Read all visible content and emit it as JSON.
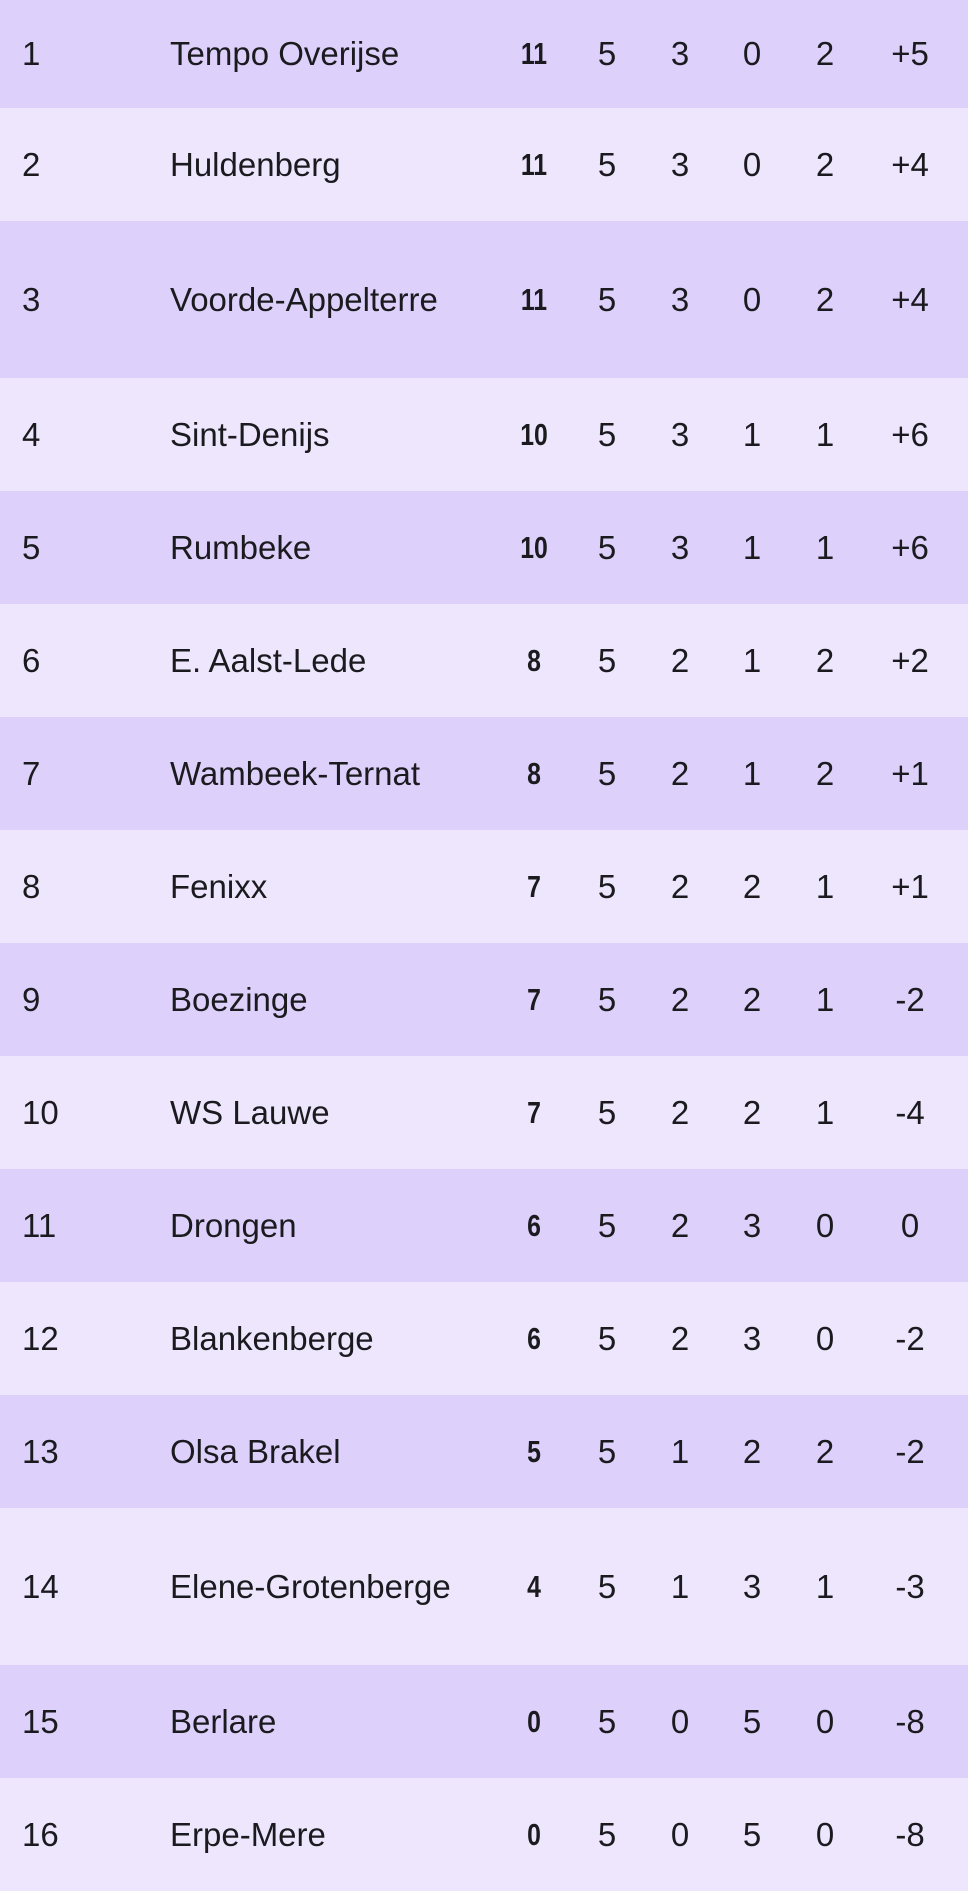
{
  "colors": {
    "row_dark": "#ddd0fb",
    "row_light": "#ede6fd",
    "text": "#1b1b1f"
  },
  "standings": [
    {
      "rank": "1",
      "team": "Tempo Overijse",
      "points": "11",
      "played": "5",
      "won": "3",
      "drawn": "0",
      "lost": "2",
      "goal_diff": "+5"
    },
    {
      "rank": "2",
      "team": "Huldenberg",
      "points": "11",
      "played": "5",
      "won": "3",
      "drawn": "0",
      "lost": "2",
      "goal_diff": "+4"
    },
    {
      "rank": "3",
      "team": "Voorde-Appelterre",
      "points": "11",
      "played": "5",
      "won": "3",
      "drawn": "0",
      "lost": "2",
      "goal_diff": "+4"
    },
    {
      "rank": "4",
      "team": "Sint-Denijs",
      "points": "10",
      "played": "5",
      "won": "3",
      "drawn": "1",
      "lost": "1",
      "goal_diff": "+6"
    },
    {
      "rank": "5",
      "team": "Rumbeke",
      "points": "10",
      "played": "5",
      "won": "3",
      "drawn": "1",
      "lost": "1",
      "goal_diff": "+6"
    },
    {
      "rank": "6",
      "team": "E. Aalst-Lede",
      "points": "8",
      "played": "5",
      "won": "2",
      "drawn": "1",
      "lost": "2",
      "goal_diff": "+2"
    },
    {
      "rank": "7",
      "team": "Wambeek-Ternat",
      "points": "8",
      "played": "5",
      "won": "2",
      "drawn": "1",
      "lost": "2",
      "goal_diff": "+1"
    },
    {
      "rank": "8",
      "team": "Fenixx",
      "points": "7",
      "played": "5",
      "won": "2",
      "drawn": "2",
      "lost": "1",
      "goal_diff": "+1"
    },
    {
      "rank": "9",
      "team": "Boezinge",
      "points": "7",
      "played": "5",
      "won": "2",
      "drawn": "2",
      "lost": "1",
      "goal_diff": "-2"
    },
    {
      "rank": "10",
      "team": "WS Lauwe",
      "points": "7",
      "played": "5",
      "won": "2",
      "drawn": "2",
      "lost": "1",
      "goal_diff": "-4"
    },
    {
      "rank": "11",
      "team": "Drongen",
      "points": "6",
      "played": "5",
      "won": "2",
      "drawn": "3",
      "lost": "0",
      "goal_diff": "0"
    },
    {
      "rank": "12",
      "team": "Blankenberge",
      "points": "6",
      "played": "5",
      "won": "2",
      "drawn": "3",
      "lost": "0",
      "goal_diff": "-2"
    },
    {
      "rank": "13",
      "team": "Olsa Brakel",
      "points": "5",
      "played": "5",
      "won": "1",
      "drawn": "2",
      "lost": "2",
      "goal_diff": "-2"
    },
    {
      "rank": "14",
      "team": "Elene-Grotenberge",
      "points": "4",
      "played": "5",
      "won": "1",
      "drawn": "3",
      "lost": "1",
      "goal_diff": "-3"
    },
    {
      "rank": "15",
      "team": "Berlare",
      "points": "0",
      "played": "5",
      "won": "0",
      "drawn": "5",
      "lost": "0",
      "goal_diff": "-8"
    },
    {
      "rank": "16",
      "team": "Erpe-Mere",
      "points": "0",
      "played": "5",
      "won": "0",
      "drawn": "5",
      "lost": "0",
      "goal_diff": "-8"
    }
  ]
}
